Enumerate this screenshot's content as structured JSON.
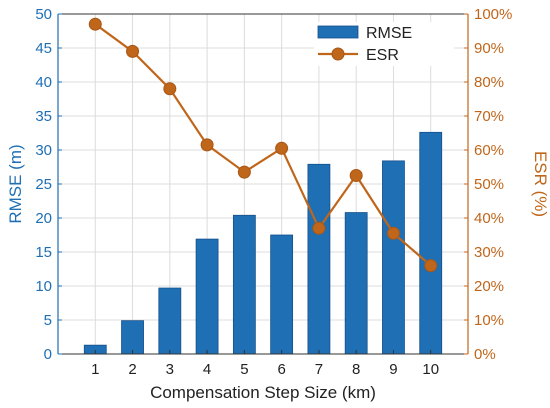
{
  "chart_data": {
    "type": "bar",
    "categories": [
      "1",
      "2",
      "3",
      "4",
      "5",
      "6",
      "7",
      "8",
      "9",
      "10"
    ],
    "series": [
      {
        "name": "RMSE",
        "type": "bar",
        "axis": "left",
        "values": [
          1.3,
          4.9,
          9.7,
          16.9,
          20.4,
          17.5,
          27.9,
          20.8,
          28.4,
          32.6
        ],
        "color": "#1f6fb5"
      },
      {
        "name": "ESR",
        "type": "line",
        "axis": "right",
        "values": [
          97,
          89,
          78,
          61.5,
          53.5,
          60.5,
          37,
          52.5,
          35.5,
          26
        ],
        "color": "#c0661b"
      }
    ],
    "xlabel": "Compensation Step Size (km)",
    "ylabel_left": "RMSE (m)",
    "ylabel_right": "ESR (%)",
    "ylim_left": [
      0,
      50
    ],
    "ylim_right": [
      0,
      100
    ],
    "yticks_left": [
      "0",
      "5",
      "10",
      "15",
      "20",
      "25",
      "30",
      "35",
      "40",
      "45",
      "50"
    ],
    "yticks_right": [
      "0%",
      "10%",
      "20%",
      "30%",
      "40%",
      "50%",
      "60%",
      "70%",
      "80%",
      "90%",
      "100%"
    ],
    "grid": true,
    "legend_position": "top-right",
    "colors": {
      "left_axis": "#1f6fb5",
      "right_axis": "#c0661b",
      "grid": "#dcdcdc",
      "axis": "#333333"
    }
  }
}
